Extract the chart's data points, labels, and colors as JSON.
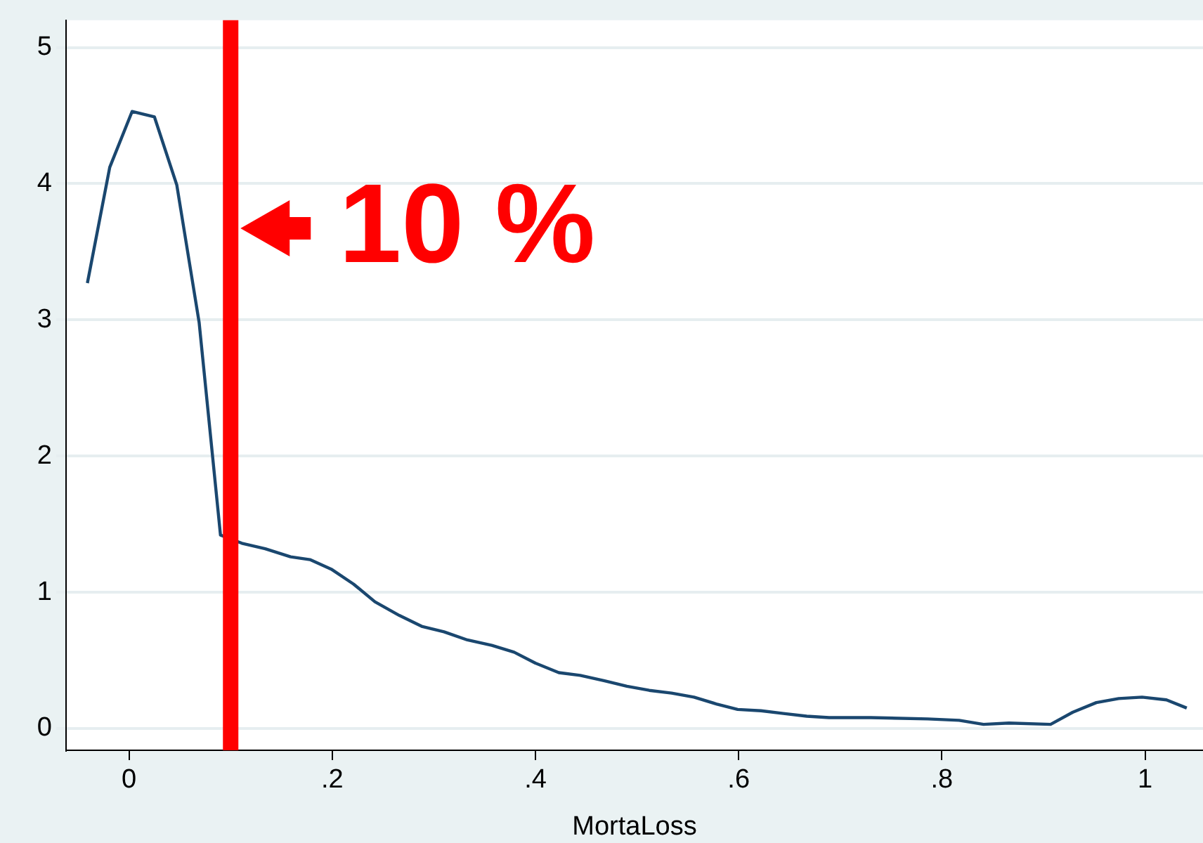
{
  "chart_data": {
    "type": "line",
    "xlabel": "MortaLoss",
    "x": [
      -0.041,
      -0.019,
      0.003,
      0.025,
      0.047,
      0.069,
      0.09,
      0.111,
      0.134,
      0.159,
      0.178,
      0.199,
      0.221,
      0.242,
      0.266,
      0.288,
      0.31,
      0.333,
      0.357,
      0.379,
      0.4,
      0.423,
      0.444,
      0.468,
      0.49,
      0.512,
      0.534,
      0.556,
      0.578,
      0.599,
      0.622,
      0.644,
      0.667,
      0.689,
      0.73,
      0.786,
      0.817,
      0.841,
      0.866,
      0.907,
      0.929,
      0.952,
      0.974,
      0.997,
      1.021,
      1.041
    ],
    "series": [
      {
        "color": "#1a476f",
        "values": [
          3.27,
          4.12,
          4.53,
          4.49,
          3.99,
          2.98,
          1.42,
          1.36,
          1.32,
          1.26,
          1.24,
          1.17,
          1.06,
          0.93,
          0.83,
          0.75,
          0.71,
          0.65,
          0.61,
          0.56,
          0.48,
          0.41,
          0.39,
          0.35,
          0.31,
          0.28,
          0.26,
          0.23,
          0.18,
          0.14,
          0.13,
          0.11,
          0.09,
          0.08,
          0.08,
          0.07,
          0.06,
          0.03,
          0.04,
          0.03,
          0.12,
          0.19,
          0.22,
          0.23,
          0.21,
          0.15
        ]
      }
    ],
    "xlim": [
      -0.062,
      1.057
    ],
    "ylim": [
      -0.16,
      5.2
    ],
    "xticks": [
      0,
      {
        "value": 0.2,
        "label": ".2"
      },
      {
        "value": 0.4,
        "label": ".4"
      },
      {
        "value": 0.6,
        "label": ".6"
      },
      {
        "value": 0.8,
        "label": ".8"
      },
      1
    ],
    "yticks": [
      0,
      1,
      2,
      3,
      4,
      5
    ],
    "grid": "y",
    "legend": false,
    "marker": "none",
    "line_style": "solid",
    "ref_lines": [
      {
        "axis": "x",
        "value": 0.1,
        "label": "10 %",
        "color": "#ff0000",
        "line_style": "solid"
      }
    ]
  }
}
